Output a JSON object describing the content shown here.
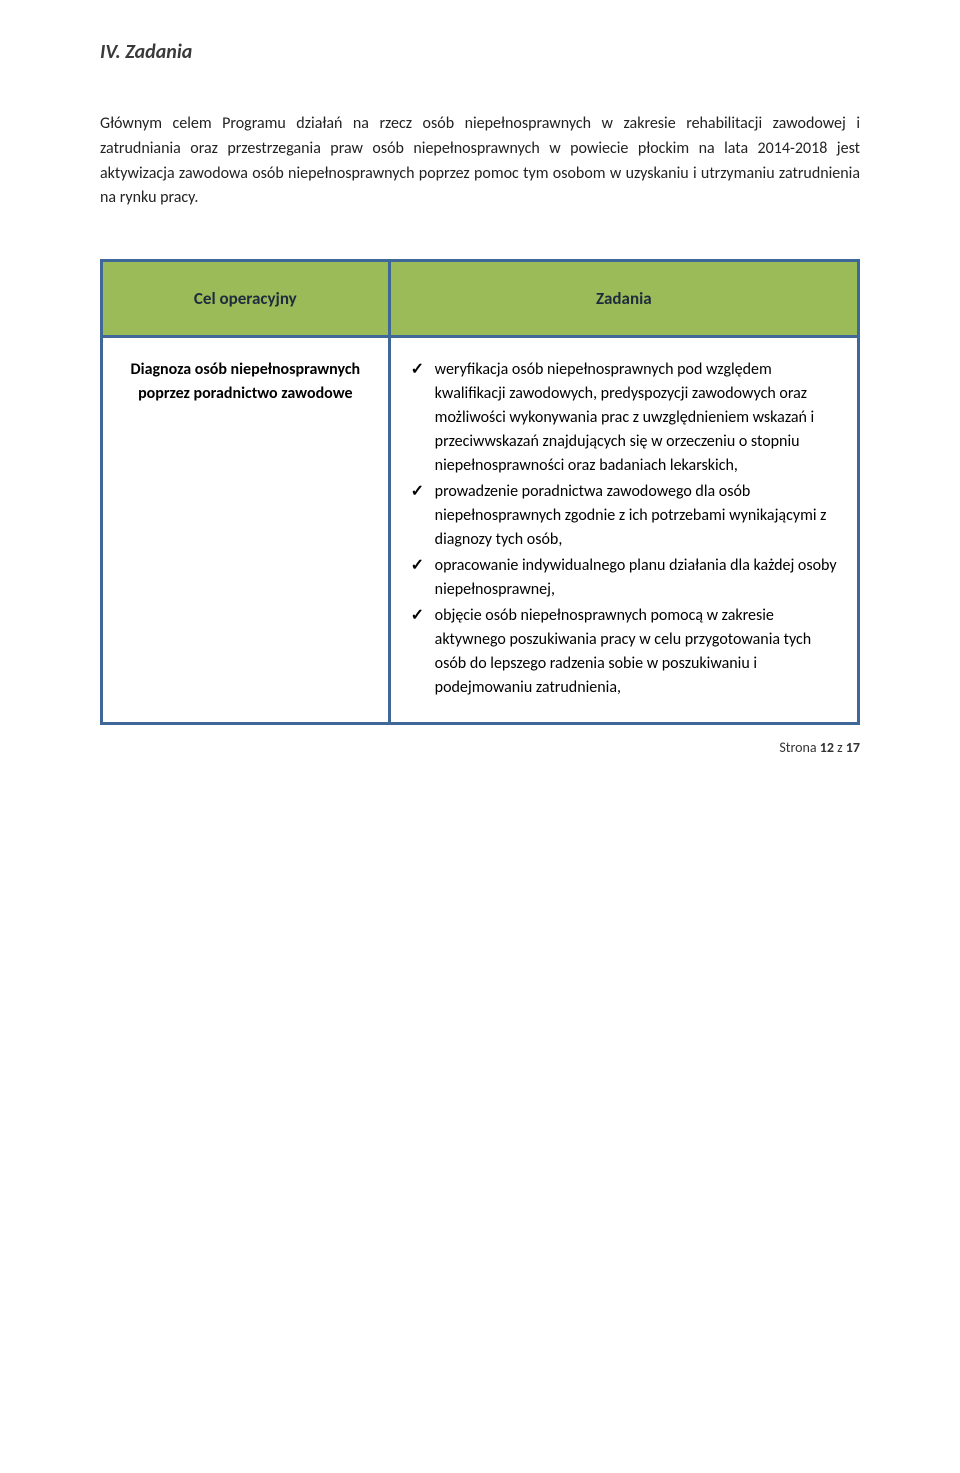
{
  "section": {
    "title": "IV. Zadania"
  },
  "intro": {
    "text": "Głównym celem Programu działań na rzecz osób niepełnosprawnych w zakresie rehabilitacji zawodowej i zatrudniania oraz przestrzegania praw osób niepełnosprawnych w powiecie płockim na lata 2014-2018 jest aktywizacja zawodowa osób niepełnosprawnych poprzez pomoc tym osobom w uzyskaniu i utrzymaniu zatrudnienia na rynku pracy."
  },
  "table": {
    "header_left": "Cel operacyjny",
    "header_right": "Zadania",
    "left_cell": "Diagnoza osób niepełnosprawnych poprzez poradnictwo zawodowe",
    "bullets": [
      "weryfikacja osób niepełnosprawnych pod względem kwalifikacji zawodowych, predyspozycji zawodowych oraz możliwości wykonywania prac z uwzględnieniem wskazań i przeciwwskazań znajdujących się  w orzeczeniu o stopniu niepełnosprawności  oraz badaniach lekarskich,",
      "prowadzenie poradnictwa zawodowego dla osób niepełnosprawnych zgodnie z ich potrzebami wynikającymi z diagnozy tych osób,",
      "opracowanie indywidualnego planu działania dla każdej osoby niepełnosprawnej,",
      "objęcie osób niepełnosprawnych pomocą w zakresie  aktywnego poszukiwania pracy w celu przygotowania tych osób do lepszego radzenia sobie w poszukiwaniu i podejmowaniu zatrudnienia,"
    ]
  },
  "footer": {
    "label_prefix": "Strona ",
    "page_current": "12",
    "label_mid": " z ",
    "page_total": "17"
  },
  "colors": {
    "header_bg": "#9bbb59",
    "border": "#3f6797",
    "text": "#000000",
    "title": "#3a3a3a"
  },
  "typography": {
    "body_fontsize": 16,
    "title_fontsize": 20,
    "footer_fontsize": 14
  }
}
